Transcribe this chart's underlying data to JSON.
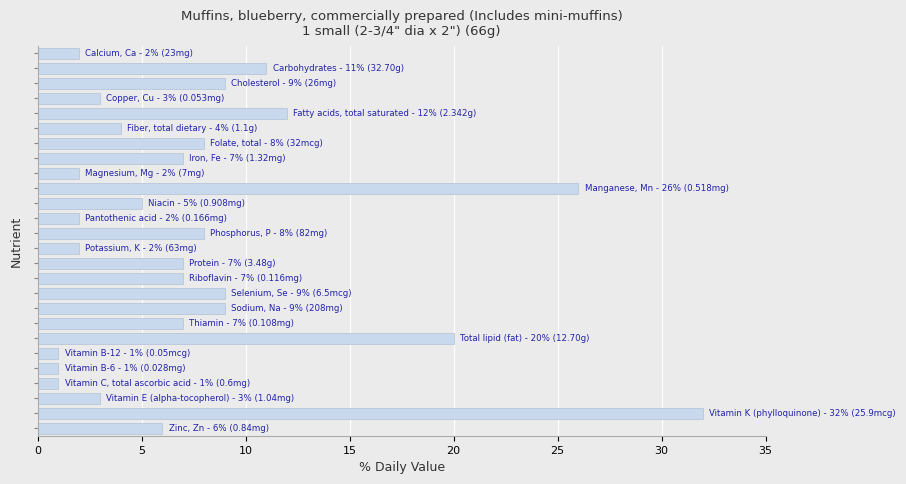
{
  "title": "Muffins, blueberry, commercially prepared (Includes mini-muffins)\n1 small (2-3/4\" dia x 2\") (66g)",
  "xlabel": "% Daily Value",
  "ylabel": "Nutrient",
  "xlim": [
    0,
    35
  ],
  "background_color": "#ebebeb",
  "bar_color": "#c8d9ee",
  "bar_edge_color": "#a8b8d0",
  "label_color": "#2222aa",
  "title_color": "#333333",
  "nutrients": [
    {
      "name": "Calcium, Ca - 2% (23mg)",
      "value": 2
    },
    {
      "name": "Carbohydrates - 11% (32.70g)",
      "value": 11
    },
    {
      "name": "Cholesterol - 9% (26mg)",
      "value": 9
    },
    {
      "name": "Copper, Cu - 3% (0.053mg)",
      "value": 3
    },
    {
      "name": "Fatty acids, total saturated - 12% (2.342g)",
      "value": 12
    },
    {
      "name": "Fiber, total dietary - 4% (1.1g)",
      "value": 4
    },
    {
      "name": "Folate, total - 8% (32mcg)",
      "value": 8
    },
    {
      "name": "Iron, Fe - 7% (1.32mg)",
      "value": 7
    },
    {
      "name": "Magnesium, Mg - 2% (7mg)",
      "value": 2
    },
    {
      "name": "Manganese, Mn - 26% (0.518mg)",
      "value": 26
    },
    {
      "name": "Niacin - 5% (0.908mg)",
      "value": 5
    },
    {
      "name": "Pantothenic acid - 2% (0.166mg)",
      "value": 2
    },
    {
      "name": "Phosphorus, P - 8% (82mg)",
      "value": 8
    },
    {
      "name": "Potassium, K - 2% (63mg)",
      "value": 2
    },
    {
      "name": "Protein - 7% (3.48g)",
      "value": 7
    },
    {
      "name": "Riboflavin - 7% (0.116mg)",
      "value": 7
    },
    {
      "name": "Selenium, Se - 9% (6.5mcg)",
      "value": 9
    },
    {
      "name": "Sodium, Na - 9% (208mg)",
      "value": 9
    },
    {
      "name": "Thiamin - 7% (0.108mg)",
      "value": 7
    },
    {
      "name": "Total lipid (fat) - 20% (12.70g)",
      "value": 20
    },
    {
      "name": "Vitamin B-12 - 1% (0.05mcg)",
      "value": 1
    },
    {
      "name": "Vitamin B-6 - 1% (0.028mg)",
      "value": 1
    },
    {
      "name": "Vitamin C, total ascorbic acid - 1% (0.6mg)",
      "value": 1
    },
    {
      "name": "Vitamin E (alpha-tocopherol) - 3% (1.04mg)",
      "value": 3
    },
    {
      "name": "Vitamin K (phylloquinone) - 32% (25.9mcg)",
      "value": 32
    },
    {
      "name": "Zinc, Zn - 6% (0.84mg)",
      "value": 6
    }
  ]
}
